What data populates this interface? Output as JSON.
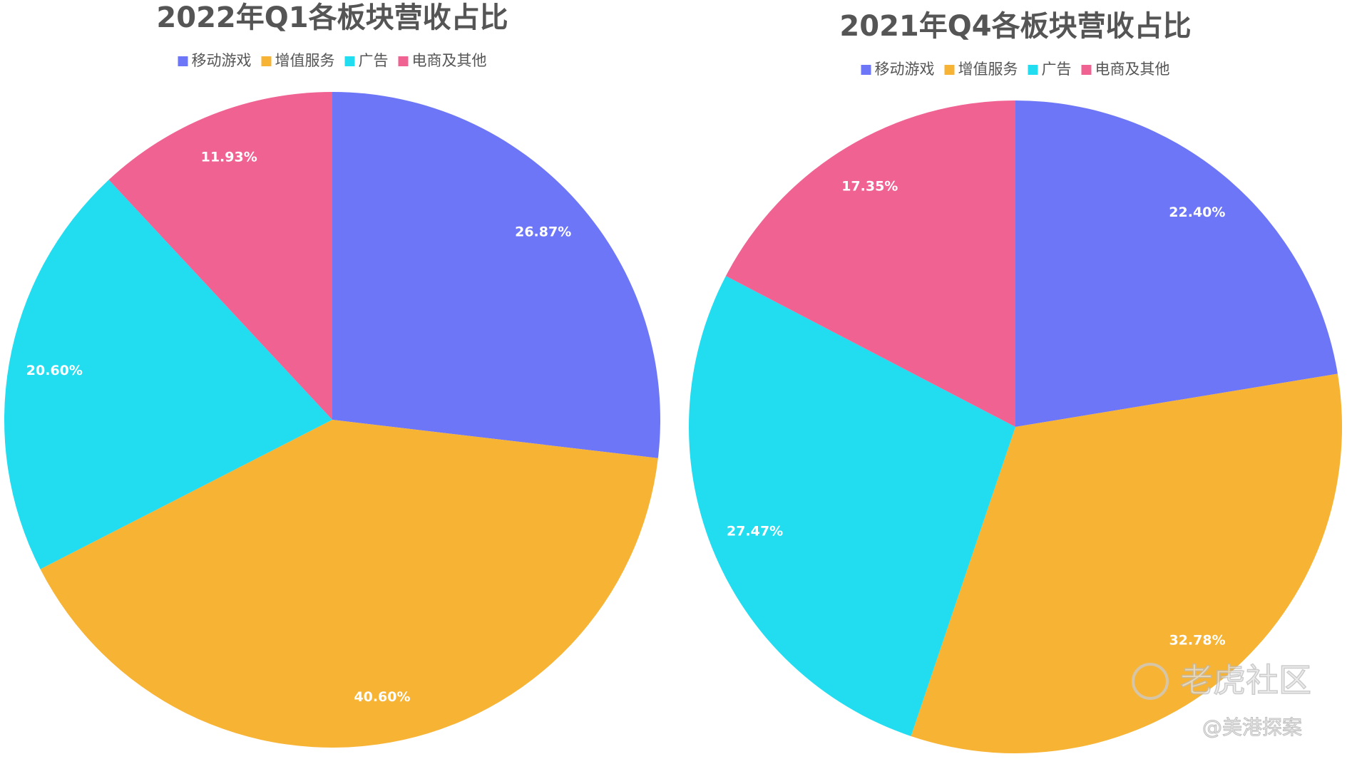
{
  "chart_data": [
    {
      "type": "pie",
      "title": "2022年Q1各板块营收占比",
      "categories": [
        "移动游戏",
        "增值服务",
        "广告",
        "电商及其他"
      ],
      "values": [
        26.87,
        40.6,
        20.6,
        11.93
      ],
      "value_labels": [
        "26.87%",
        "40.60%",
        "20.60%",
        "11.93%"
      ],
      "colors": [
        "#6e76f8",
        "#f7b334",
        "#22dcf0",
        "#f06292"
      ],
      "legend": "top"
    },
    {
      "type": "pie",
      "title": "2021年Q4各板块营收占比",
      "categories": [
        "移动游戏",
        "增值服务",
        "广告",
        "电商及其他"
      ],
      "values": [
        22.4,
        32.78,
        27.47,
        17.35
      ],
      "value_labels": [
        "22.40%",
        "32.78%",
        "27.47%",
        "17.35%"
      ],
      "colors": [
        "#6e76f8",
        "#f7b334",
        "#22dcf0",
        "#f06292"
      ],
      "legend": "top"
    }
  ],
  "watermark": {
    "logo": "老虎社区",
    "author": "@美港探案"
  }
}
